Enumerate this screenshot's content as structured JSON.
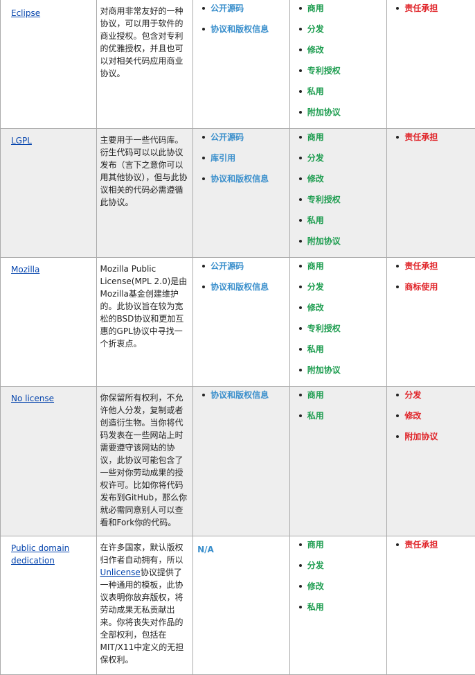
{
  "rows": [
    {
      "name": "Eclipse",
      "description": "对商用非常友好的一种协议，可以用于软件的商业授权。包含对专利的优雅授权，并且也可以对相关代码应用商业协议。",
      "conditions": [
        "公开源码",
        "协议和版权信息"
      ],
      "permissions": [
        "商用",
        "分发",
        "修改",
        "专利授权",
        "私用",
        "附加协议"
      ],
      "limitations": [
        "责任承担"
      ]
    },
    {
      "name": "LGPL",
      "description": "主要用于一些代码库。衍生代码可以以此协议发布（言下之意你可以用其他协议），但与此协议相关的代码必需遵循此协议。",
      "conditions": [
        "公开源码",
        "库引用",
        "协议和版权信息"
      ],
      "permissions": [
        "商用",
        "分发",
        "修改",
        "专利授权",
        "私用",
        "附加协议"
      ],
      "limitations": [
        "责任承担"
      ]
    },
    {
      "name": "Mozilla",
      "description": "Mozilla Public License(MPL 2.0)是由Mozilla基金创建维护的。此协议旨在较为宽松的BSD协议和更加互惠的GPL协议中寻找一个折衷点。",
      "conditions": [
        "公开源码",
        "协议和版权信息"
      ],
      "permissions": [
        "商用",
        "分发",
        "修改",
        "专利授权",
        "私用",
        "附加协议"
      ],
      "limitations": [
        "责任承担",
        "商标使用"
      ]
    },
    {
      "name": "No license",
      "description": "你保留所有权利，不允许他人分发，复制或者创造衍生物。当你将代码发表在一些网站上时需要遵守该网站的协议，此协议可能包含了一些对你劳动成果的授权许可。比如你将代码发布到GitHub，那么你就必需同意别人可以查看和Fork你的代码。",
      "conditions": [
        "协议和版权信息"
      ],
      "permissions": [
        "商用",
        "私用"
      ],
      "limitations": [
        "分发",
        "修改",
        "附加协议"
      ]
    },
    {
      "name": "Public domain dedication",
      "description_before": "在许多国家，默认版权归作者自动拥有，所以",
      "description_link": "Unlicense",
      "description_after": "协议提供了一种通用的模板，此协议表明你放弃版权，将劳动成果无私贡献出来。你将丧失对作品的全部权利，包括在MIT/X11中定义的无担保权利。",
      "conditions_na": "N/A",
      "permissions": [
        "商用",
        "分发",
        "修改",
        "私用"
      ],
      "limitations": [
        "责任承担"
      ]
    }
  ],
  "colors": {
    "link": "#0645ad",
    "conditions": "#3a8fcc",
    "permissions": "#1e9d50",
    "limitations": "#e0252a",
    "alt_row_bg": "#eeeeee"
  }
}
